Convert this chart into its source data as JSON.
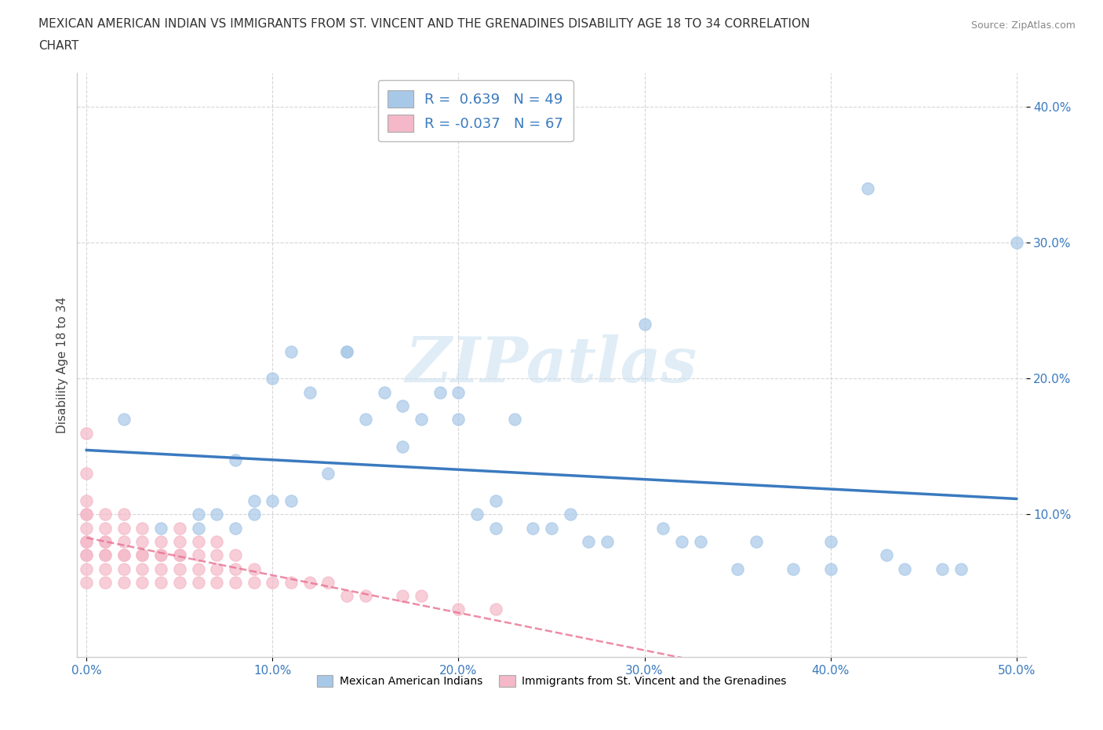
{
  "title_line1": "MEXICAN AMERICAN INDIAN VS IMMIGRANTS FROM ST. VINCENT AND THE GRENADINES DISABILITY AGE 18 TO 34 CORRELATION",
  "title_line2": "CHART",
  "source": "Source: ZipAtlas.com",
  "ylabel": "Disability Age 18 to 34",
  "xlim": [
    -0.005,
    0.505
  ],
  "ylim": [
    -0.005,
    0.425
  ],
  "xticks": [
    0.0,
    0.1,
    0.2,
    0.3,
    0.4,
    0.5
  ],
  "yticks": [
    0.1,
    0.2,
    0.3,
    0.4
  ],
  "xtick_labels": [
    "0.0%",
    "10.0%",
    "20.0%",
    "30.0%",
    "40.0%",
    "50.0%"
  ],
  "ytick_labels": [
    "10.0%",
    "20.0%",
    "30.0%",
    "40.0%"
  ],
  "r_blue": 0.639,
  "n_blue": 49,
  "r_pink": -0.037,
  "n_pink": 67,
  "blue_color": "#a8c8e8",
  "pink_color": "#f4b8c8",
  "blue_line_color": "#3a7abf",
  "pink_line_color": "#e87090",
  "watermark": "ZIPatlas",
  "blue_scatter_x": [
    0.02,
    0.04,
    0.06,
    0.06,
    0.07,
    0.08,
    0.08,
    0.09,
    0.09,
    0.1,
    0.1,
    0.11,
    0.11,
    0.12,
    0.13,
    0.14,
    0.14,
    0.15,
    0.16,
    0.17,
    0.17,
    0.18,
    0.19,
    0.2,
    0.2,
    0.21,
    0.22,
    0.22,
    0.23,
    0.24,
    0.25,
    0.26,
    0.27,
    0.28,
    0.3,
    0.31,
    0.32,
    0.33,
    0.35,
    0.36,
    0.38,
    0.4,
    0.4,
    0.42,
    0.43,
    0.44,
    0.46,
    0.47,
    0.5
  ],
  "blue_scatter_y": [
    0.17,
    0.09,
    0.09,
    0.1,
    0.1,
    0.09,
    0.14,
    0.1,
    0.11,
    0.11,
    0.2,
    0.11,
    0.22,
    0.19,
    0.13,
    0.22,
    0.22,
    0.17,
    0.19,
    0.15,
    0.18,
    0.17,
    0.19,
    0.17,
    0.19,
    0.1,
    0.09,
    0.11,
    0.17,
    0.09,
    0.09,
    0.1,
    0.08,
    0.08,
    0.24,
    0.09,
    0.08,
    0.08,
    0.06,
    0.08,
    0.06,
    0.06,
    0.08,
    0.34,
    0.07,
    0.06,
    0.06,
    0.06,
    0.3
  ],
  "pink_scatter_x": [
    0.0,
    0.0,
    0.0,
    0.0,
    0.0,
    0.0,
    0.0,
    0.0,
    0.0,
    0.0,
    0.0,
    0.0,
    0.01,
    0.01,
    0.01,
    0.01,
    0.01,
    0.01,
    0.01,
    0.01,
    0.02,
    0.02,
    0.02,
    0.02,
    0.02,
    0.02,
    0.02,
    0.03,
    0.03,
    0.03,
    0.03,
    0.03,
    0.03,
    0.04,
    0.04,
    0.04,
    0.04,
    0.04,
    0.05,
    0.05,
    0.05,
    0.05,
    0.05,
    0.05,
    0.06,
    0.06,
    0.06,
    0.06,
    0.07,
    0.07,
    0.07,
    0.07,
    0.08,
    0.08,
    0.08,
    0.09,
    0.09,
    0.1,
    0.11,
    0.12,
    0.13,
    0.14,
    0.15,
    0.17,
    0.18,
    0.2,
    0.22
  ],
  "pink_scatter_y": [
    0.05,
    0.06,
    0.07,
    0.07,
    0.08,
    0.08,
    0.09,
    0.1,
    0.1,
    0.11,
    0.13,
    0.16,
    0.05,
    0.06,
    0.07,
    0.07,
    0.08,
    0.08,
    0.09,
    0.1,
    0.05,
    0.06,
    0.07,
    0.07,
    0.08,
    0.09,
    0.1,
    0.05,
    0.06,
    0.07,
    0.07,
    0.08,
    0.09,
    0.05,
    0.06,
    0.07,
    0.07,
    0.08,
    0.05,
    0.06,
    0.07,
    0.07,
    0.08,
    0.09,
    0.05,
    0.06,
    0.07,
    0.08,
    0.05,
    0.06,
    0.07,
    0.08,
    0.05,
    0.06,
    0.07,
    0.05,
    0.06,
    0.05,
    0.05,
    0.05,
    0.05,
    0.04,
    0.04,
    0.04,
    0.04,
    0.03,
    0.03
  ],
  "legend_label_blue": "Mexican American Indians",
  "legend_label_pink": "Immigrants from St. Vincent and the Grenadines",
  "grid_color": "#cccccc",
  "background_color": "#ffffff"
}
